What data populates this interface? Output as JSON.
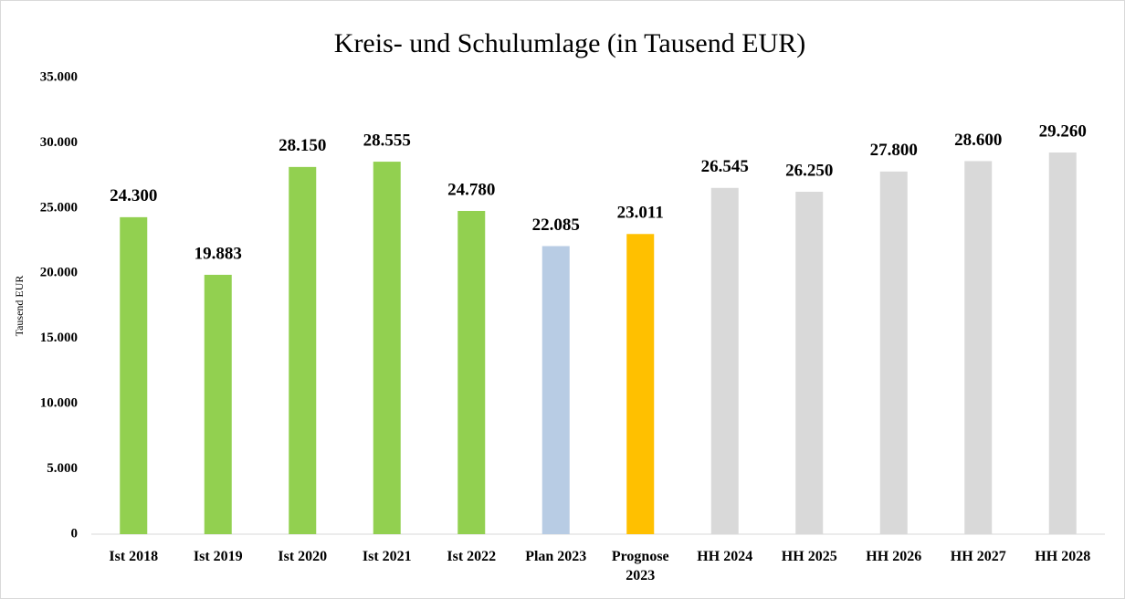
{
  "chart_data": {
    "type": "bar",
    "title": "Kreis- und Schulumlage (in Tausend EUR)",
    "y_label": "Tausend EUR",
    "categories": [
      "Ist 2018",
      "Ist 2019",
      "Ist 2020",
      "Ist 2021",
      "Ist 2022",
      "Plan 2023",
      "Prognose 2023",
      "HH 2024",
      "HH 2025",
      "HH 2026",
      "HH 2027",
      "HH 2028"
    ],
    "values": [
      24300,
      19883,
      28150,
      28555,
      24780,
      22085,
      23011,
      26545,
      26250,
      27800,
      28600,
      29260
    ],
    "value_labels": [
      "24.300",
      "19.883",
      "28.150",
      "28.555",
      "24.780",
      "22.085",
      "23.011",
      "26.545",
      "26.250",
      "27.800",
      "28.600",
      "29.260"
    ],
    "colors": [
      "#92d050",
      "#92d050",
      "#92d050",
      "#92d050",
      "#92d050",
      "#b8cce4",
      "#ffc000",
      "#d9d9d9",
      "#d9d9d9",
      "#d9d9d9",
      "#d9d9d9",
      "#d9d9d9"
    ],
    "ylim": [
      0,
      35000
    ],
    "yticks": [
      0,
      {
        "value": 5000,
        "label": "5.000"
      },
      {
        "value": 10000,
        "label": "10.000"
      },
      {
        "value": 15000,
        "label": "15.000"
      },
      {
        "value": 20000,
        "label": "20.000"
      },
      {
        "value": 25000,
        "label": "25.000"
      },
      {
        "value": 30000,
        "label": "30.000"
      },
      {
        "value": 35000,
        "label": "35.000"
      }
    ],
    "grid": false
  }
}
